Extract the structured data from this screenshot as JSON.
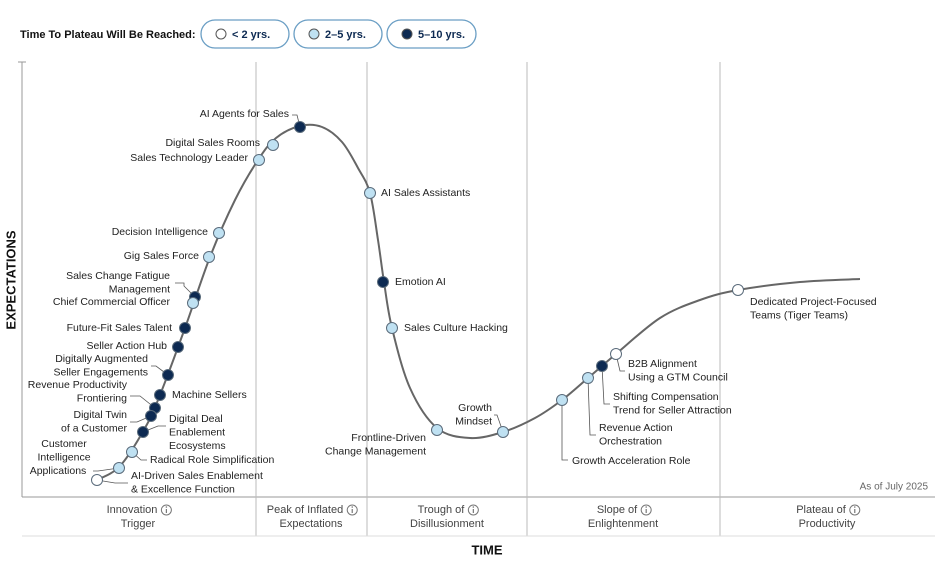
{
  "legend": {
    "title": "Time To Plateau Will Be Reached:",
    "items": [
      {
        "label": "< 2 yrs.",
        "color": "#ffffff"
      },
      {
        "label": "2–5 yrs.",
        "color": "#bfe1f2"
      },
      {
        "label": "5–10 yrs.",
        "color": "#0d2a52"
      }
    ]
  },
  "axes": {
    "y_title": "EXPECTATIONS",
    "x_title": "TIME"
  },
  "as_of": "As of July 2025",
  "phases": [
    {
      "lines": [
        "Innovation",
        "Trigger"
      ]
    },
    {
      "lines": [
        "Peak of Inflated",
        "Expectations"
      ]
    },
    {
      "lines": [
        "Trough of",
        "Disillusionment"
      ]
    },
    {
      "lines": [
        "Slope of",
        "Enlightenment"
      ]
    },
    {
      "lines": [
        "Plateau of",
        "Productivity"
      ]
    }
  ],
  "nodes": [
    {
      "lines": [
        "AI Agents for Sales"
      ],
      "plateau": 2
    },
    {
      "lines": [
        "Digital Sales Rooms"
      ],
      "plateau": 1
    },
    {
      "lines": [
        "Sales Technology Leader"
      ],
      "plateau": 1
    },
    {
      "lines": [
        "Decision Intelligence"
      ],
      "plateau": 1
    },
    {
      "lines": [
        "Gig Sales Force"
      ],
      "plateau": 1
    },
    {
      "lines": [
        "Sales Change Fatigue",
        "Management"
      ],
      "plateau": 2
    },
    {
      "lines": [
        "Chief Commercial Officer"
      ],
      "plateau": 1
    },
    {
      "lines": [
        "Future-Fit Sales Talent"
      ],
      "plateau": 2
    },
    {
      "lines": [
        "Seller Action Hub"
      ],
      "plateau": 2
    },
    {
      "lines": [
        "Digitally Augmented",
        "Seller Engagements"
      ],
      "plateau": 2
    },
    {
      "lines": [
        "Machine Sellers"
      ],
      "plateau": 2
    },
    {
      "lines": [
        "Revenue Productivity",
        "Frontiering"
      ],
      "plateau": 2
    },
    {
      "lines": [
        "Digital Twin",
        "of a Customer"
      ],
      "plateau": 2
    },
    {
      "lines": [
        "Digital Deal",
        "Enablement",
        "Ecosystems"
      ],
      "plateau": 2
    },
    {
      "lines": [
        "Customer",
        "Intelligence",
        "Applications"
      ],
      "plateau": 1
    },
    {
      "lines": [
        "Radical Role Simplification"
      ],
      "plateau": 1
    },
    {
      "lines": [
        "AI-Driven Sales Enablement",
        "& Excellence Function"
      ],
      "plateau": 0
    },
    {
      "lines": [
        "AI Sales Assistants"
      ],
      "plateau": 1
    },
    {
      "lines": [
        "Emotion AI"
      ],
      "plateau": 2
    },
    {
      "lines": [
        "Sales Culture Hacking"
      ],
      "plateau": 1
    },
    {
      "lines": [
        "Frontline-Driven",
        "Change Management"
      ],
      "plateau": 1
    },
    {
      "lines": [
        "Growth",
        "Mindset"
      ],
      "plateau": 1
    },
    {
      "lines": [
        "Growth Acceleration Role"
      ],
      "plateau": 1
    },
    {
      "lines": [
        "Revenue Action",
        "Orchestration"
      ],
      "plateau": 1
    },
    {
      "lines": [
        "Shifting Compensation",
        "Trend for Seller Attraction"
      ],
      "plateau": 2
    },
    {
      "lines": [
        "B2B Alignment",
        "Using a GTM Council"
      ],
      "plateau": 0
    },
    {
      "lines": [
        "Dedicated Project-Focused",
        "Teams (Tiger Teams)"
      ],
      "plateau": 0
    }
  ]
}
